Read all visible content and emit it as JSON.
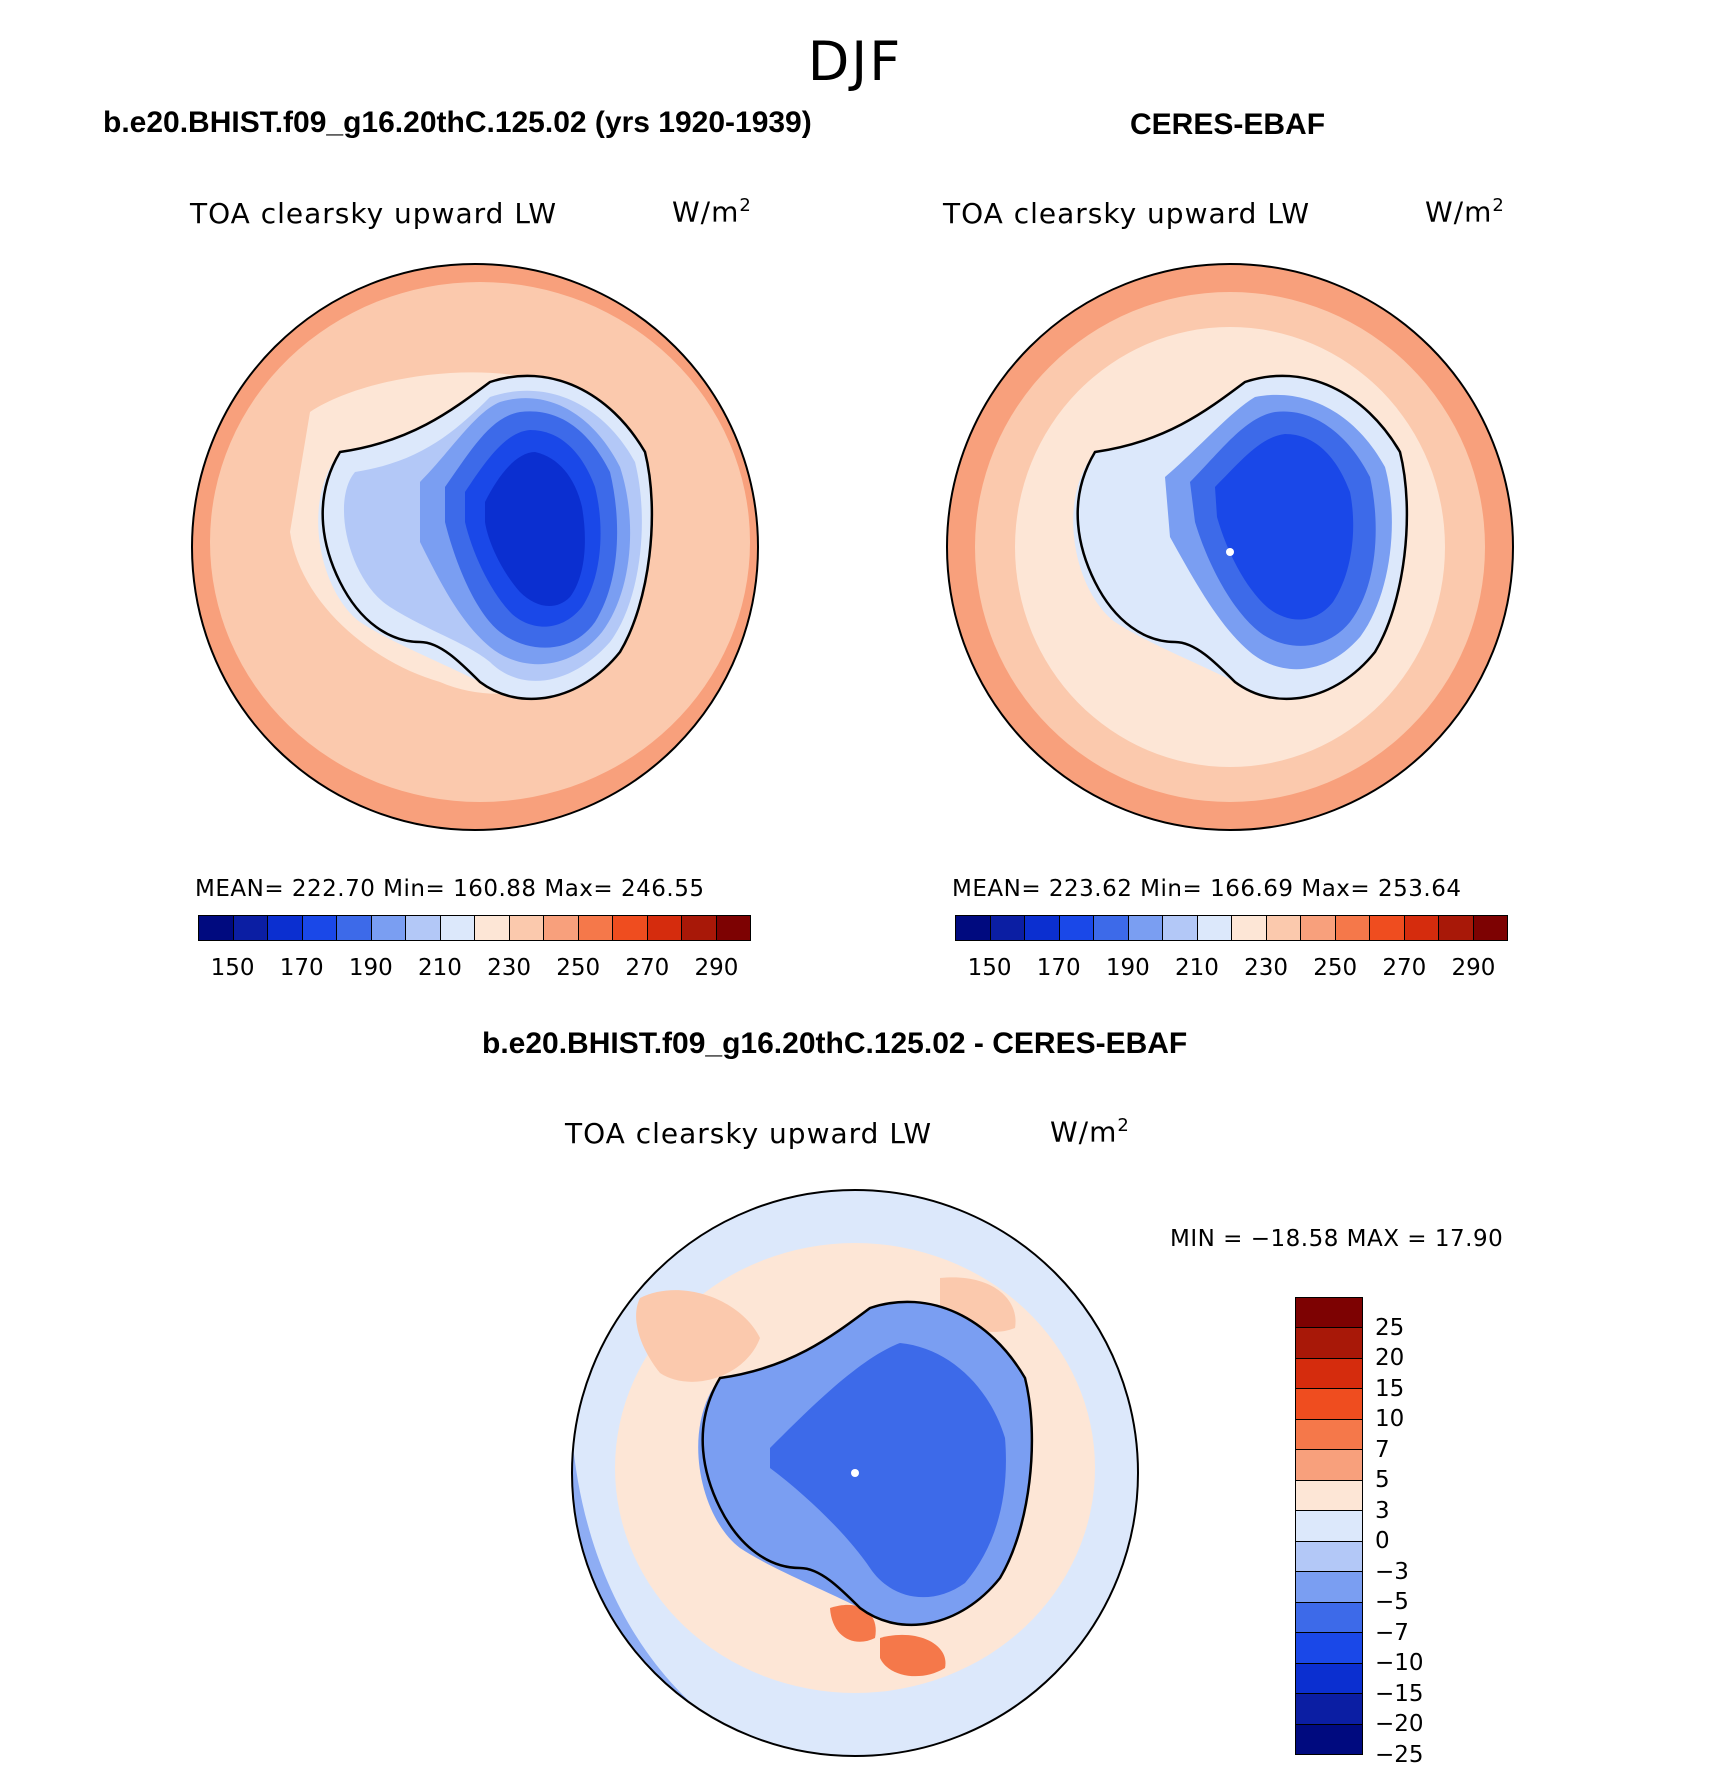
{
  "season": "DJF",
  "variable": "TOA clearsky upward LW",
  "units_base": "W/m",
  "units_exp": "2",
  "panels": {
    "model": {
      "title": "b.e20.BHIST.f09_g16.20thC.125.02 (yrs 1920-1939)",
      "stats": "MEAN= 222.70   Min= 160.88   Max= 246.55"
    },
    "obs": {
      "title": "CERES-EBAF",
      "stats": "MEAN= 223.62   Min= 166.69   Max= 253.64"
    },
    "diff": {
      "title": "b.e20.BHIST.f09_g16.20thC.125.02 - CERES-EBAF",
      "stats": "MIN = −18.58 MAX =   17.90"
    }
  },
  "colorbar_abs": {
    "colors": [
      "#000a7f",
      "#0b1ea3",
      "#0b2fd0",
      "#1a48e8",
      "#3d6ae9",
      "#7a9ef2",
      "#b3c8f7",
      "#dce8fb",
      "#fde6d6",
      "#fbc9ad",
      "#f8a07c",
      "#f5784a",
      "#ef4d1f",
      "#d52c0d",
      "#a81808",
      "#7d0202"
    ],
    "ticks": [
      "150",
      "170",
      "190",
      "210",
      "230",
      "250",
      "270",
      "290"
    ]
  },
  "colorbar_diff": {
    "colors": [
      "#7d0202",
      "#a81808",
      "#d52c0d",
      "#ef4d1f",
      "#f5784a",
      "#f8a07c",
      "#fde6d6",
      "#dce8fb",
      "#b3c8f7",
      "#7a9ef2",
      "#3d6ae9",
      "#1a48e8",
      "#0b2fd0",
      "#0b1ea3",
      "#000a7f"
    ],
    "ticks": [
      "25",
      "20",
      "15",
      "10",
      "7",
      "5",
      "3",
      "0",
      "−3",
      "−5",
      "−7",
      "−10",
      "−15",
      "−20",
      "−25"
    ]
  },
  "map_colors": {
    "ocean_outer": "#f8a07c",
    "ocean_mid": "#fbc9ad",
    "ocean_inner": "#fde6d6",
    "ice_edge": "#dce8fb",
    "ice_1": "#b3c8f7",
    "ice_2": "#7a9ef2",
    "ice_3": "#3d6ae9",
    "ice_4": "#1a48e8",
    "ice_5": "#0b2fd0",
    "diff_pos1": "#fde6d6",
    "diff_pos2": "#fbc9ad",
    "diff_pos3": "#f5784a",
    "diff_neg1": "#dce8fb",
    "diff_neg2": "#b3c8f7",
    "diff_neg3": "#7a9ef2"
  }
}
